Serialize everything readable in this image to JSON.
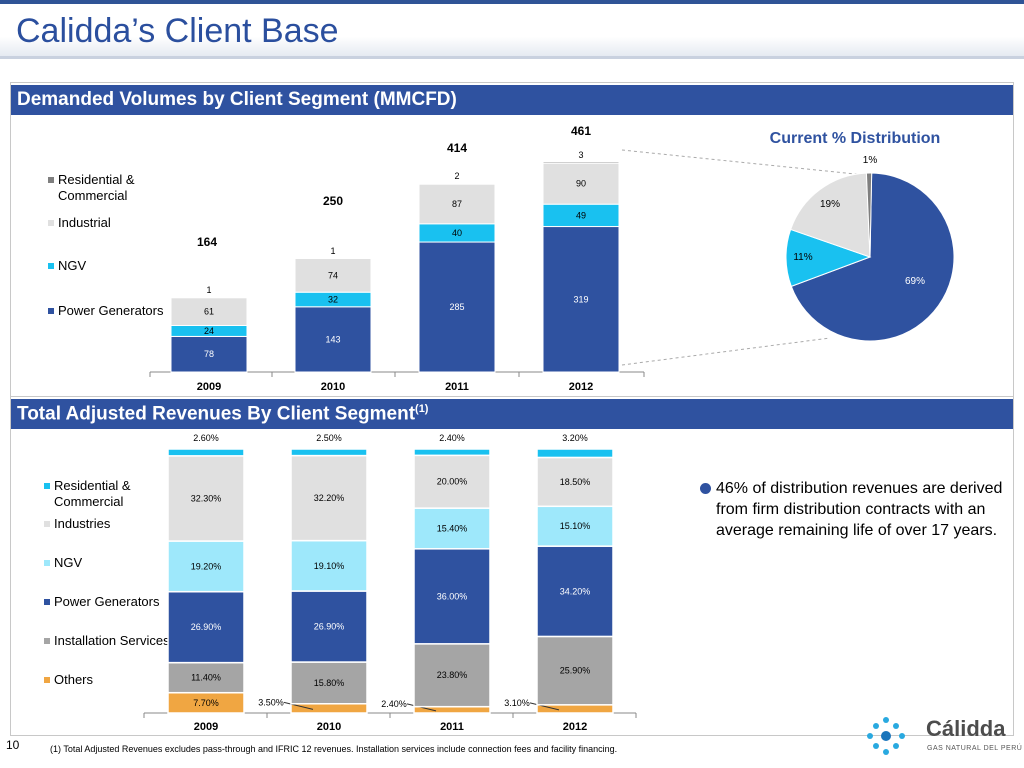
{
  "title": "Calidda’s Client Base",
  "section1_title": "Demanded Volumes by Client Segment (MMCFD)",
  "section2_title": "Total Adjusted Revenues By Client Segment",
  "section2_sup": "(1)",
  "colors": {
    "power": "#2f52a0",
    "ngv": "#19c1f0",
    "industrial": "#e0e0e0",
    "residential": "#7f7f7f",
    "ngv_light": "#9ee8fb",
    "installation": "#a5a5a5",
    "others": "#f0a642"
  },
  "chart_data": [
    {
      "type": "bar",
      "stacked": true,
      "categories": [
        "2009",
        "2010",
        "2011",
        "2012"
      ],
      "series": [
        {
          "name": "Power Generators",
          "values": [
            78,
            143,
            285,
            319
          ],
          "color": "#2f52a0"
        },
        {
          "name": "NGV",
          "values": [
            24,
            32,
            40,
            49
          ],
          "color": "#19c1f0"
        },
        {
          "name": "Industrial",
          "values": [
            61,
            74,
            87,
            90
          ],
          "color": "#e0e0e0"
        },
        {
          "name": "Residential & Commercial",
          "values": [
            1,
            1,
            2,
            3
          ],
          "color": "#7f7f7f"
        }
      ],
      "totals": [
        164,
        250,
        414,
        461
      ],
      "legend": [
        "Residential & Commercial",
        "Industrial",
        "NGV",
        "Power Generators"
      ]
    },
    {
      "type": "pie",
      "title": "Current % Distribution",
      "slices": [
        {
          "label": "69%",
          "value": 69,
          "color": "#2f52a0"
        },
        {
          "label": "11%",
          "value": 11,
          "color": "#19c1f0"
        },
        {
          "label": "19%",
          "value": 19,
          "color": "#e0e0e0"
        },
        {
          "label": "1%",
          "value": 1,
          "color": "#7f7f7f"
        }
      ]
    },
    {
      "type": "bar",
      "stacked": true,
      "percent": true,
      "categories": [
        "2009",
        "2010",
        "2011",
        "2012"
      ],
      "series": [
        {
          "name": "Others",
          "values": [
            7.7,
            3.5,
            2.4,
            3.1
          ],
          "labels": [
            "7.70%",
            "3.50%",
            "2.40%",
            "3.10%"
          ],
          "color": "#f0a642"
        },
        {
          "name": "Installation Services",
          "values": [
            11.4,
            15.8,
            23.8,
            25.9
          ],
          "labels": [
            "11.40%",
            "15.80%",
            "23.80%",
            "25.90%"
          ],
          "color": "#a5a5a5"
        },
        {
          "name": "Power Generators",
          "values": [
            26.9,
            26.9,
            36.0,
            34.2
          ],
          "labels": [
            "26.90%",
            "26.90%",
            "36.00%",
            "34.20%"
          ],
          "color": "#2f52a0"
        },
        {
          "name": "NGV",
          "values": [
            19.2,
            19.1,
            15.4,
            15.1
          ],
          "labels": [
            "19.20%",
            "19.10%",
            "15.40%",
            "15.10%"
          ],
          "color": "#9ee8fb"
        },
        {
          "name": "Industries",
          "values": [
            32.3,
            32.2,
            20.0,
            18.5
          ],
          "labels": [
            "32.30%",
            "32.20%",
            "20.00%",
            "18.50%"
          ],
          "color": "#e0e0e0"
        },
        {
          "name": "Residential & Commercial",
          "values": [
            2.6,
            2.5,
            2.4,
            3.2
          ],
          "labels": [
            "2.60%",
            "2.50%",
            "2.40%",
            "3.20%"
          ],
          "color": "#19c1f0"
        }
      ],
      "legend": [
        "Residential & Commercial",
        "Industries",
        "NGV",
        "Power Generators",
        "Installation Services",
        "Others"
      ]
    }
  ],
  "bullet_text": "46% of distribution revenues are derived from firm distribution contracts with an average remaining life of over 17 years.",
  "page_number": "10",
  "footnote": "(1) Total Adjusted Revenues excludes pass-through and IFRIC 12 revenues. Installation services include connection fees and facility financing.",
  "logo": {
    "name": "Cálidda",
    "tagline": "GAS NATURAL DEL PERÚ"
  }
}
